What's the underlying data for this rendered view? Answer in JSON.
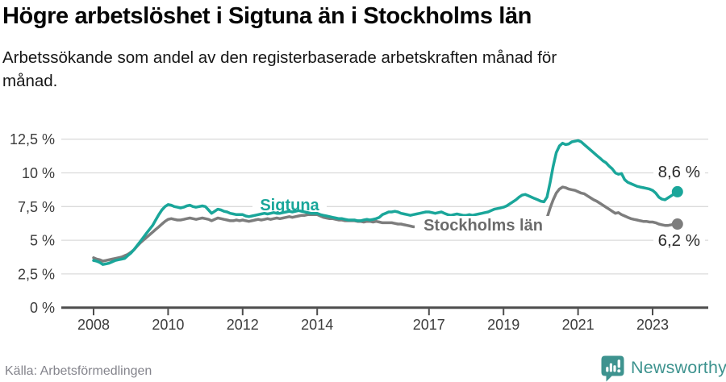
{
  "colors": {
    "accent_teal": "#1AA69A",
    "series_gray": "#7D7D7D",
    "series_gray_label": "#6B6B6B",
    "value_label_text": "#2B2B2B",
    "grid": "#DBDBDB",
    "axis": "#4D4D4D",
    "tick_text": "#3C3C3C",
    "brand_teal": "#3E938F"
  },
  "footer": {
    "source": "Källa: Arbetsförmedlingen",
    "brand": "Newsworthy"
  },
  "chart_data": {
    "type": "line",
    "title": "Högre arbetslöshet i Sigtuna än i Stockholms län",
    "subtitle": "Arbetssökande som andel av den registerbaserade arbetskraften månad för månad.",
    "unit": "%",
    "x": {
      "start_year": 2008,
      "interval": "monthly",
      "end_period": "2023-09",
      "tick_years": [
        2008,
        2010,
        2012,
        2014,
        2017,
        2019,
        2021,
        2023
      ]
    },
    "y": {
      "min": 0,
      "max": 12.5,
      "tick_values": [
        0,
        2.5,
        5,
        7.5,
        10,
        12.5
      ],
      "tick_labels": [
        "0 %",
        "2,5 %",
        "5 %",
        "7,5 %",
        "10 %",
        "12,5 %"
      ],
      "gridlines": true
    },
    "legend_position": "inline-labels",
    "series": [
      {
        "name": "Sigtuna",
        "color": "#1AA69A",
        "end_label": "8,6 %",
        "end_value": 8.6,
        "values": [
          3.5,
          3.45,
          3.35,
          3.2,
          3.25,
          3.3,
          3.4,
          3.5,
          3.55,
          3.6,
          3.65,
          3.85,
          4.05,
          4.3,
          4.6,
          4.9,
          5.2,
          5.5,
          5.8,
          6.1,
          6.5,
          6.9,
          7.25,
          7.5,
          7.65,
          7.6,
          7.5,
          7.45,
          7.4,
          7.45,
          7.55,
          7.6,
          7.5,
          7.45,
          7.5,
          7.55,
          7.5,
          7.25,
          7.0,
          7.15,
          7.3,
          7.25,
          7.15,
          7.1,
          7.0,
          6.95,
          6.9,
          6.9,
          6.9,
          6.8,
          6.75,
          6.8,
          6.85,
          6.9,
          6.95,
          7.0,
          6.95,
          7.0,
          7.05,
          7.0,
          7.0,
          7.05,
          7.1,
          7.15,
          7.1,
          7.15,
          7.2,
          7.15,
          7.1,
          7.05,
          7.0,
          7.0,
          7.0,
          6.9,
          6.85,
          6.8,
          6.75,
          6.7,
          6.65,
          6.6,
          6.6,
          6.55,
          6.5,
          6.5,
          6.5,
          6.45,
          6.45,
          6.5,
          6.55,
          6.5,
          6.55,
          6.6,
          6.7,
          6.9,
          7.0,
          7.1,
          7.1,
          7.15,
          7.1,
          7.0,
          6.95,
          6.9,
          6.85,
          6.9,
          6.95,
          7.0,
          7.05,
          7.1,
          7.1,
          7.05,
          7.0,
          7.05,
          7.1,
          7.0,
          6.9,
          6.85,
          6.9,
          6.95,
          6.9,
          6.85,
          6.85,
          6.9,
          6.85,
          6.9,
          6.95,
          7.0,
          7.05,
          7.1,
          7.2,
          7.3,
          7.35,
          7.4,
          7.45,
          7.55,
          7.7,
          7.85,
          8.0,
          8.2,
          8.35,
          8.4,
          8.3,
          8.2,
          8.1,
          8.0,
          7.9,
          7.85,
          8.2,
          9.3,
          10.5,
          11.5,
          12.0,
          12.2,
          12.1,
          12.15,
          12.3,
          12.35,
          12.4,
          12.3,
          12.1,
          11.9,
          11.7,
          11.5,
          11.3,
          11.1,
          10.9,
          10.75,
          10.5,
          10.3,
          10.0,
          9.9,
          9.95,
          9.5,
          9.3,
          9.2,
          9.1,
          9.0,
          8.95,
          8.9,
          8.85,
          8.8,
          8.7,
          8.5,
          8.2,
          8.05,
          8.0,
          8.15,
          8.3,
          8.45,
          8.6
        ]
      },
      {
        "name": "Stockholms län",
        "color": "#7D7D7D",
        "end_label": "6,2 %",
        "end_value": 6.2,
        "values": [
          3.7,
          3.6,
          3.55,
          3.45,
          3.5,
          3.55,
          3.6,
          3.65,
          3.7,
          3.75,
          3.85,
          3.95,
          4.1,
          4.3,
          4.55,
          4.8,
          5.0,
          5.2,
          5.4,
          5.6,
          5.8,
          6.0,
          6.2,
          6.4,
          6.55,
          6.6,
          6.55,
          6.5,
          6.5,
          6.55,
          6.6,
          6.65,
          6.6,
          6.55,
          6.6,
          6.65,
          6.6,
          6.55,
          6.45,
          6.55,
          6.65,
          6.6,
          6.55,
          6.5,
          6.45,
          6.45,
          6.5,
          6.45,
          6.5,
          6.45,
          6.4,
          6.45,
          6.5,
          6.55,
          6.5,
          6.55,
          6.6,
          6.55,
          6.6,
          6.65,
          6.6,
          6.65,
          6.7,
          6.75,
          6.7,
          6.75,
          6.8,
          6.85,
          6.85,
          6.9,
          6.9,
          6.9,
          6.9,
          6.8,
          6.7,
          6.65,
          6.6,
          6.6,
          6.55,
          6.5,
          6.5,
          6.45,
          6.45,
          6.45,
          6.45,
          6.4,
          6.4,
          6.35,
          6.4,
          6.4,
          6.35,
          6.4,
          6.35,
          6.3,
          6.3,
          6.3,
          6.3,
          6.25,
          6.2,
          6.2,
          6.15,
          6.1,
          6.05,
          6.0,
          6.0,
          6.0,
          5.95,
          5.95,
          5.95,
          5.95,
          5.9,
          5.9,
          5.9,
          5.85,
          5.85,
          5.9,
          5.9,
          5.95,
          5.95,
          6.0,
          6.0,
          6.0,
          5.95,
          5.95,
          6.0,
          6.0,
          6.05,
          6.05,
          6.1,
          6.1,
          6.15,
          6.15,
          6.2,
          6.2,
          6.25,
          6.3,
          6.3,
          6.35,
          6.4,
          6.45,
          6.45,
          6.4,
          6.4,
          6.35,
          6.35,
          6.4,
          6.65,
          7.4,
          8.0,
          8.5,
          8.8,
          8.95,
          8.9,
          8.8,
          8.75,
          8.7,
          8.6,
          8.5,
          8.45,
          8.3,
          8.15,
          8.0,
          7.9,
          7.75,
          7.6,
          7.45,
          7.3,
          7.15,
          7.0,
          7.05,
          6.9,
          6.8,
          6.7,
          6.6,
          6.55,
          6.5,
          6.45,
          6.4,
          6.4,
          6.35,
          6.35,
          6.3,
          6.2,
          6.15,
          6.1,
          6.1,
          6.15,
          6.2,
          6.2
        ]
      }
    ]
  }
}
